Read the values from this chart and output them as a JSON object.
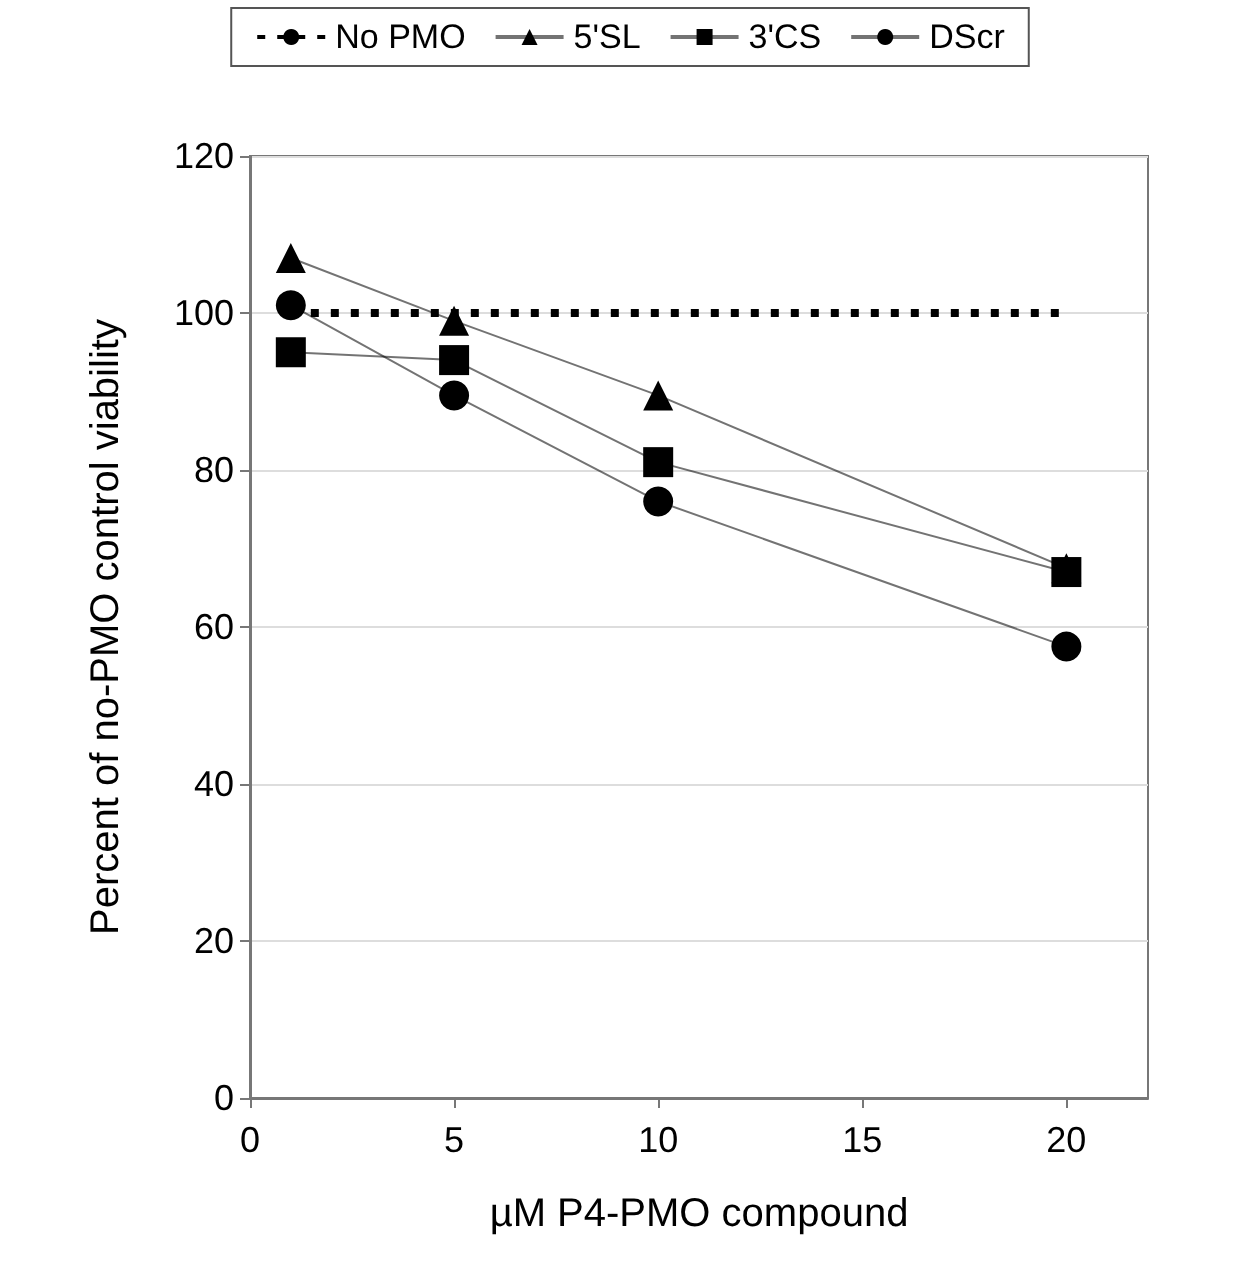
{
  "chart_data": {
    "type": "line",
    "xlabel": "µM P4-PMO compound",
    "ylabel": "Percent of no-PMO control viability",
    "xlim": [
      0,
      22
    ],
    "xticks": [
      0,
      5,
      10,
      15,
      20
    ],
    "ylim": [
      0,
      120
    ],
    "yticks": [
      0,
      20,
      40,
      60,
      80,
      100,
      120
    ],
    "grid": "y",
    "legend": "top",
    "series": [
      {
        "name": "No PMO",
        "color": "#000000",
        "x": [
          1,
          20
        ],
        "values": [
          100,
          100
        ],
        "marker": "none",
        "line_style": "dotted"
      },
      {
        "name": "5'SL",
        "color": "#000000",
        "x": [
          1,
          5,
          10,
          20
        ],
        "values": [
          107,
          99,
          89.5,
          67.5
        ],
        "marker": "triangle",
        "line_style": "solid"
      },
      {
        "name": "3'CS",
        "color": "#000000",
        "x": [
          1,
          5,
          10,
          20
        ],
        "values": [
          95,
          94,
          81,
          67
        ],
        "marker": "square",
        "line_style": "solid"
      },
      {
        "name": "DScr",
        "color": "#000000",
        "x": [
          1,
          5,
          10,
          20
        ],
        "values": [
          101,
          89.5,
          76,
          57.5
        ],
        "marker": "circle",
        "line_style": "solid"
      }
    ]
  }
}
